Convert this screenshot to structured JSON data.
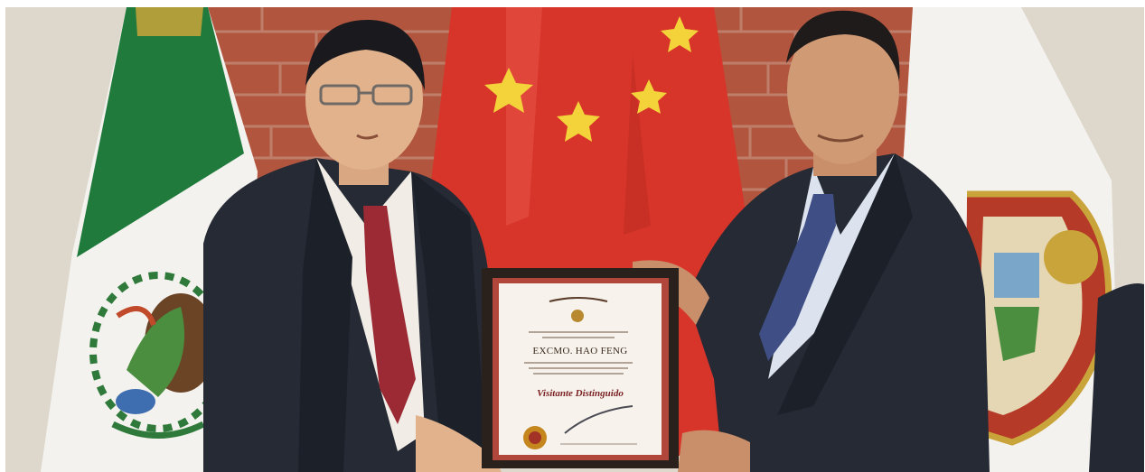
{
  "photo": {
    "certificate": {
      "recipient_line": "EXCMO. HAO FENG",
      "title_line": "Visitante Distinguido"
    },
    "colors": {
      "wall": "#b1553e",
      "china_flag_red": "#d8352a",
      "china_star": "#f3d23a",
      "mexico_green": "#1f7a3c",
      "suit_dark": "#252a34",
      "shirt_white": "#f1ede6",
      "tie_red": "#9b2a35",
      "tie_blue": "#3f4f86",
      "frame_dark": "#2b211c",
      "certificate_paper": "#f7f3ec"
    }
  }
}
